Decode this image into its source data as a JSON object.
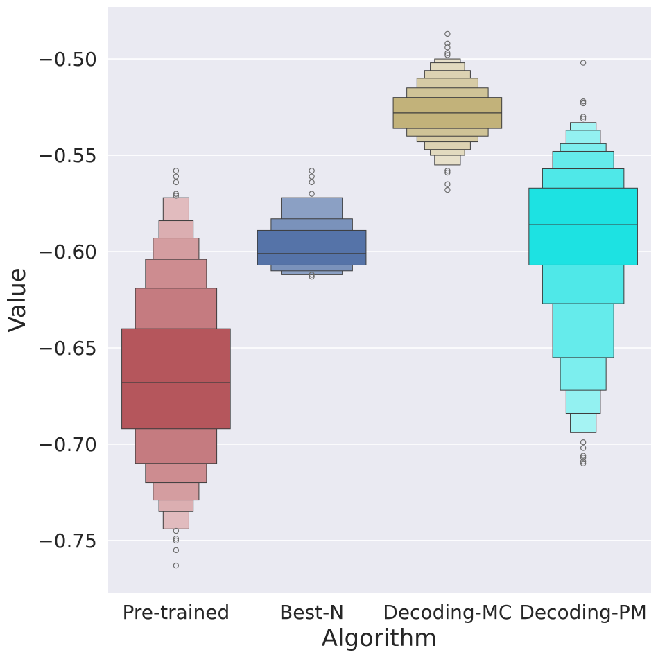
{
  "chart_data": {
    "type": "boxen",
    "title": "",
    "xlabel": "Algorithm",
    "ylabel": "Value",
    "ylim": [
      -0.777,
      -0.473
    ],
    "yticks": [
      -0.75,
      -0.7,
      -0.65,
      -0.6,
      -0.55,
      -0.5
    ],
    "ytick_labels": [
      "−0.75",
      "−0.70",
      "−0.65",
      "−0.60",
      "−0.55",
      "−0.50"
    ],
    "grid": true,
    "legend": "none",
    "series": [
      {
        "category": "Pre-trained",
        "color": "#b5565c",
        "median": -0.668,
        "levels": [
          [
            -0.692,
            -0.64
          ],
          [
            -0.71,
            -0.619
          ],
          [
            -0.72,
            -0.604
          ],
          [
            -0.729,
            -0.593
          ],
          [
            -0.735,
            -0.584
          ],
          [
            -0.744,
            -0.572
          ]
        ],
        "outliers": [
          -0.558,
          -0.561,
          -0.564,
          -0.57,
          -0.571,
          -0.745,
          -0.749,
          -0.75,
          -0.755,
          -0.763
        ]
      },
      {
        "category": "Best-N",
        "color": "#5573a8",
        "median": -0.601,
        "levels": [
          [
            -0.607,
            -0.589
          ],
          [
            -0.61,
            -0.583
          ],
          [
            -0.612,
            -0.572
          ]
        ],
        "outliers": [
          -0.558,
          -0.561,
          -0.564,
          -0.57,
          -0.612,
          -0.613
        ]
      },
      {
        "category": "Decoding-MC",
        "color": "#c2b27a",
        "median": -0.528,
        "levels": [
          [
            -0.536,
            -0.52
          ],
          [
            -0.54,
            -0.515
          ],
          [
            -0.543,
            -0.51
          ],
          [
            -0.547,
            -0.506
          ],
          [
            -0.55,
            -0.502
          ],
          [
            -0.555,
            -0.5
          ]
        ],
        "outliers": [
          -0.487,
          -0.492,
          -0.494,
          -0.497,
          -0.498,
          -0.558,
          -0.559,
          -0.565,
          -0.568
        ]
      },
      {
        "category": "Decoding-PM",
        "color": "#1de2e2",
        "median": -0.586,
        "levels": [
          [
            -0.607,
            -0.567
          ],
          [
            -0.627,
            -0.557
          ],
          [
            -0.655,
            -0.548
          ],
          [
            -0.672,
            -0.544
          ],
          [
            -0.684,
            -0.537
          ],
          [
            -0.694,
            -0.533
          ]
        ],
        "outliers": [
          -0.502,
          -0.522,
          -0.523,
          -0.53,
          -0.531,
          -0.699,
          -0.702,
          -0.706,
          -0.707,
          -0.709,
          -0.71
        ]
      }
    ]
  }
}
